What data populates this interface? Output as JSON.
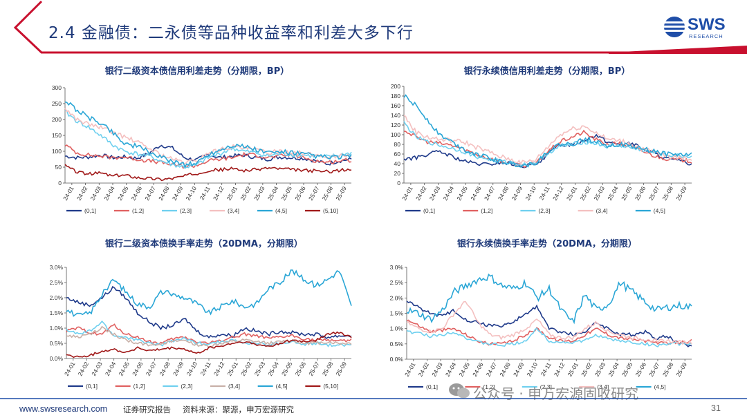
{
  "header": {
    "title": "2.4 金融债：二永债等品种收益率和利差大多下行",
    "logo_text": "SWS",
    "logo_subtext": "RESEARCH",
    "accent_red": "#c8102e",
    "accent_blue": "#1f4ea8"
  },
  "footer": {
    "url": "www.swsresearch.com",
    "label": "证券研究报告",
    "source": "资料来源：聚源，申万宏源研究",
    "page_number": "31",
    "watermark": "公众号 · 申万宏源固收研究"
  },
  "chart_data": [
    {
      "id": "c1",
      "type": "line",
      "title": "银行二级资本债信用利差走势（分期限，BP）",
      "ylim": [
        0,
        300
      ],
      "yticks": [
        0,
        50,
        100,
        150,
        200,
        250,
        300
      ],
      "ytick_labels": [
        "0",
        "50",
        "100",
        "150",
        "200",
        "250",
        "300"
      ],
      "xticks": [
        "24-01",
        "24-02",
        "24-03",
        "24-04",
        "24-05",
        "24-06",
        "24-07",
        "24-08",
        "24-09",
        "24-10",
        "24-11",
        "24-12",
        "25-01",
        "25-02",
        "25-03",
        "25-04",
        "25-05",
        "25-06",
        "25-07",
        "25-08",
        "25-09"
      ],
      "series": [
        {
          "name": "(0,1]",
          "color": "#1f3a8a",
          "volatility": 6,
          "values": [
            85,
            80,
            82,
            88,
            80,
            82,
            78,
            92,
            120,
            110,
            80,
            72,
            90,
            80,
            85,
            88,
            80,
            75,
            82,
            80,
            78,
            70,
            60,
            70,
            75
          ]
        },
        {
          "name": "(1,2]",
          "color": "#e06060",
          "volatility": 6,
          "values": [
            120,
            95,
            88,
            85,
            80,
            82,
            75,
            70,
            65,
            58,
            52,
            55,
            70,
            75,
            80,
            90,
            88,
            80,
            85,
            88,
            80,
            70,
            65,
            70,
            72
          ]
        },
        {
          "name": "(2,3]",
          "color": "#6fd0ef",
          "volatility": 7,
          "values": [
            225,
            195,
            175,
            150,
            120,
            100,
            92,
            85,
            70,
            58,
            50,
            55,
            80,
            92,
            110,
            100,
            95,
            85,
            92,
            90,
            88,
            85,
            82,
            88,
            95
          ]
        },
        {
          "name": "(3,4]",
          "color": "#f4c0c0",
          "volatility": 7,
          "values": [
            235,
            200,
            185,
            175,
            160,
            145,
            130,
            110,
            90,
            75,
            65,
            70,
            95,
            105,
            115,
            110,
            105,
            95,
            100,
            98,
            92,
            88,
            82,
            85,
            88
          ]
        },
        {
          "name": "(4,5]",
          "color": "#2aa6d6",
          "volatility": 8,
          "values": [
            260,
            230,
            205,
            190,
            160,
            125,
            115,
            100,
            80,
            70,
            58,
            62,
            90,
            105,
            120,
            115,
            105,
            95,
            98,
            95,
            90,
            85,
            80,
            82,
            85
          ]
        },
        {
          "name": "(5,10]",
          "color": "#a01818",
          "volatility": 5,
          "values": [
            55,
            35,
            28,
            32,
            22,
            25,
            18,
            15,
            12,
            15,
            22,
            30,
            40,
            42,
            45,
            40,
            42,
            48,
            45,
            42,
            40,
            38,
            36,
            40,
            42
          ]
        }
      ]
    },
    {
      "id": "c2",
      "type": "line",
      "title": "银行永续债信用利差走势（分期限，BP）",
      "ylim": [
        0,
        200
      ],
      "yticks": [
        0,
        20,
        40,
        60,
        80,
        100,
        120,
        140,
        160,
        180,
        200
      ],
      "ytick_labels": [
        "0",
        "20",
        "40",
        "60",
        "80",
        "100",
        "120",
        "140",
        "160",
        "180",
        "200"
      ],
      "xticks": [
        "24-01",
        "24-02",
        "24-03",
        "24-04",
        "24-05",
        "24-06",
        "24-07",
        "24-08",
        "24-09",
        "24-10",
        "24-11",
        "24-12",
        "25-01",
        "25-02",
        "25-03",
        "25-04",
        "25-05",
        "25-06",
        "25-07",
        "25-08",
        "25-09"
      ],
      "series": [
        {
          "name": "(0,1]",
          "color": "#1f3a8a",
          "volatility": 4,
          "values": [
            50,
            52,
            60,
            65,
            55,
            45,
            40,
            38,
            42,
            40,
            35,
            38,
            60,
            78,
            80,
            88,
            100,
            85,
            80,
            82,
            70,
            60,
            50,
            45,
            40
          ]
        },
        {
          "name": "(1,2]",
          "color": "#e06060",
          "volatility": 4,
          "values": [
            110,
            95,
            85,
            82,
            78,
            70,
            60,
            52,
            45,
            40,
            36,
            40,
            65,
            85,
            95,
            105,
            90,
            80,
            82,
            75,
            65,
            55,
            50,
            48,
            45
          ]
        },
        {
          "name": "(2,3]",
          "color": "#6fd0ef",
          "volatility": 4,
          "values": [
            125,
            95,
            85,
            78,
            72,
            65,
            55,
            50,
            45,
            42,
            38,
            42,
            62,
            75,
            80,
            85,
            82,
            75,
            78,
            72,
            68,
            62,
            58,
            56,
            55
          ]
        },
        {
          "name": "(3,4]",
          "color": "#f4c0c0",
          "volatility": 5,
          "values": [
            140,
            105,
            95,
            90,
            88,
            85,
            75,
            65,
            55,
            48,
            42,
            48,
            75,
            100,
            112,
            118,
            105,
            90,
            88,
            80,
            70,
            62,
            55,
            52,
            50
          ]
        },
        {
          "name": "(4,5]",
          "color": "#2aa6d6",
          "volatility": 5,
          "values": [
            180,
            160,
            130,
            100,
            85,
            70,
            60,
            52,
            45,
            40,
            36,
            42,
            65,
            80,
            80,
            90,
            88,
            78,
            80,
            75,
            70,
            65,
            60,
            58,
            60
          ]
        }
      ]
    },
    {
      "id": "c3",
      "type": "line",
      "title": "银行二级资本债换手率走势（20DMA，分期限）",
      "ylim": [
        0,
        3.0
      ],
      "yticks": [
        0,
        0.5,
        1.0,
        1.5,
        2.0,
        2.5,
        3.0
      ],
      "ytick_labels": [
        "0.0%",
        "0.5%",
        "1.0%",
        "1.5%",
        "2.0%",
        "2.5%",
        "3.0%"
      ],
      "xticks": [
        "24-01",
        "24-02",
        "24-03",
        "24-04",
        "24-05",
        "24-06",
        "24-07",
        "24-08",
        "24-09",
        "24-10",
        "24-11",
        "24-12",
        "25-01",
        "25-02",
        "25-03",
        "25-04",
        "25-05",
        "25-06",
        "25-07",
        "25-08",
        "25-09"
      ],
      "series": [
        {
          "name": "(0,1]",
          "color": "#1f3a8a",
          "volatility": 0.06,
          "values": [
            2.0,
            1.85,
            1.75,
            2.0,
            2.35,
            2.0,
            1.5,
            1.2,
            1.0,
            1.1,
            1.3,
            0.9,
            0.7,
            0.8,
            0.75,
            1.0,
            0.9,
            0.8,
            0.9,
            0.85,
            0.8,
            0.8,
            0.7,
            0.75,
            0.75
          ]
        },
        {
          "name": "(1,2]",
          "color": "#e06060",
          "volatility": 0.05,
          "values": [
            0.9,
            1.0,
            0.85,
            0.8,
            1.1,
            0.8,
            0.7,
            0.55,
            0.5,
            0.65,
            0.7,
            0.55,
            0.5,
            0.6,
            0.7,
            0.8,
            0.75,
            0.65,
            0.7,
            0.75,
            0.65,
            0.6,
            0.6,
            0.6,
            0.6
          ]
        },
        {
          "name": "(2,3]",
          "color": "#6fd0ef",
          "volatility": 0.05,
          "values": [
            0.95,
            0.8,
            0.9,
            1.2,
            0.75,
            0.7,
            0.6,
            0.5,
            0.45,
            0.6,
            0.65,
            0.5,
            0.5,
            0.55,
            0.6,
            0.5,
            0.5,
            0.45,
            0.5,
            0.55,
            0.45,
            0.5,
            0.45,
            0.45,
            0.45
          ]
        },
        {
          "name": "(3,4]",
          "color": "#c8b0a8",
          "volatility": 0.05,
          "values": [
            0.75,
            0.7,
            0.8,
            1.0,
            0.8,
            0.6,
            0.5,
            0.45,
            0.5,
            0.55,
            0.6,
            0.45,
            0.4,
            0.5,
            0.55,
            0.6,
            0.55,
            0.5,
            0.55,
            0.6,
            0.5,
            0.5,
            0.55,
            0.5,
            0.5
          ]
        },
        {
          "name": "(4,5]",
          "color": "#2aa6d6",
          "volatility": 0.09,
          "values": [
            1.6,
            1.4,
            1.5,
            2.1,
            2.6,
            2.2,
            1.8,
            1.7,
            2.2,
            2.1,
            2.0,
            1.8,
            1.5,
            1.7,
            1.9,
            1.7,
            1.8,
            2.3,
            2.5,
            2.9,
            2.6,
            2.4,
            2.6,
            2.9,
            1.7
          ]
        },
        {
          "name": "(5,10]",
          "color": "#a01818",
          "volatility": 0.04,
          "values": [
            0.1,
            0.05,
            0.1,
            0.25,
            0.3,
            0.2,
            0.35,
            0.25,
            0.3,
            0.35,
            0.3,
            0.15,
            0.35,
            0.4,
            0.5,
            0.55,
            0.45,
            0.4,
            0.5,
            0.6,
            0.55,
            0.6,
            0.8,
            0.85,
            0.7
          ]
        }
      ]
    },
    {
      "id": "c4",
      "type": "line",
      "title": "银行永续债换手率走势（20DMA，分期限）",
      "ylim": [
        0,
        3.0
      ],
      "yticks": [
        0,
        0.5,
        1.0,
        1.5,
        2.0,
        2.5,
        3.0
      ],
      "ytick_labels": [
        "0.0%",
        "0.5%",
        "1.0%",
        "1.5%",
        "2.0%",
        "2.5%",
        "3.0%"
      ],
      "xticks": [
        "24-01",
        "24-02",
        "24-03",
        "24-04",
        "24-05",
        "24-06",
        "24-07",
        "24-08",
        "24-09",
        "24-10",
        "24-11",
        "24-12",
        "25-01",
        "25-02",
        "25-03",
        "25-04",
        "25-05",
        "25-06",
        "25-07",
        "25-08",
        "25-09"
      ],
      "series": [
        {
          "name": "(0,1]",
          "color": "#1f3a8a",
          "volatility": 0.06,
          "values": [
            1.9,
            1.7,
            1.5,
            1.4,
            1.6,
            1.3,
            1.2,
            1.1,
            1.1,
            1.2,
            1.5,
            1.7,
            1.0,
            0.9,
            0.8,
            0.9,
            1.2,
            1.0,
            0.8,
            0.8,
            0.9,
            0.7,
            0.75,
            0.5,
            0.45
          ]
        },
        {
          "name": "(1,2]",
          "color": "#e06060",
          "volatility": 0.05,
          "values": [
            1.3,
            1.1,
            0.9,
            0.95,
            1.0,
            0.8,
            0.6,
            0.5,
            0.5,
            0.6,
            0.8,
            1.0,
            0.7,
            0.6,
            0.6,
            0.8,
            1.0,
            0.8,
            0.7,
            0.65,
            0.6,
            0.55,
            0.5,
            0.55,
            0.6
          ]
        },
        {
          "name": "(2,3]",
          "color": "#6fd0ef",
          "volatility": 0.05,
          "values": [
            0.9,
            0.85,
            0.75,
            0.8,
            0.9,
            0.7,
            0.55,
            0.5,
            0.45,
            0.5,
            0.6,
            1.0,
            0.6,
            0.55,
            0.55,
            0.6,
            0.8,
            0.65,
            0.6,
            0.55,
            0.5,
            0.45,
            0.5,
            0.5,
            0.5
          ]
        },
        {
          "name": "(3,4]",
          "color": "#f4c0c0",
          "volatility": 0.06,
          "values": [
            1.2,
            1.0,
            0.9,
            1.0,
            1.5,
            1.9,
            1.2,
            0.8,
            0.7,
            0.8,
            1.0,
            1.3,
            0.8,
            0.7,
            0.7,
            1.0,
            1.2,
            0.9,
            0.8,
            0.7,
            0.65,
            0.6,
            0.6,
            0.55,
            0.55
          ]
        },
        {
          "name": "(4,5]",
          "color": "#2aa6d6",
          "volatility": 0.12,
          "values": [
            1.6,
            1.5,
            1.3,
            1.6,
            2.2,
            2.4,
            2.6,
            2.7,
            2.4,
            2.3,
            2.5,
            2.0,
            2.3,
            1.6,
            1.2,
            2.1,
            1.6,
            1.8,
            2.5,
            2.2,
            1.9,
            1.6,
            1.7,
            1.75,
            1.7
          ]
        }
      ]
    }
  ]
}
